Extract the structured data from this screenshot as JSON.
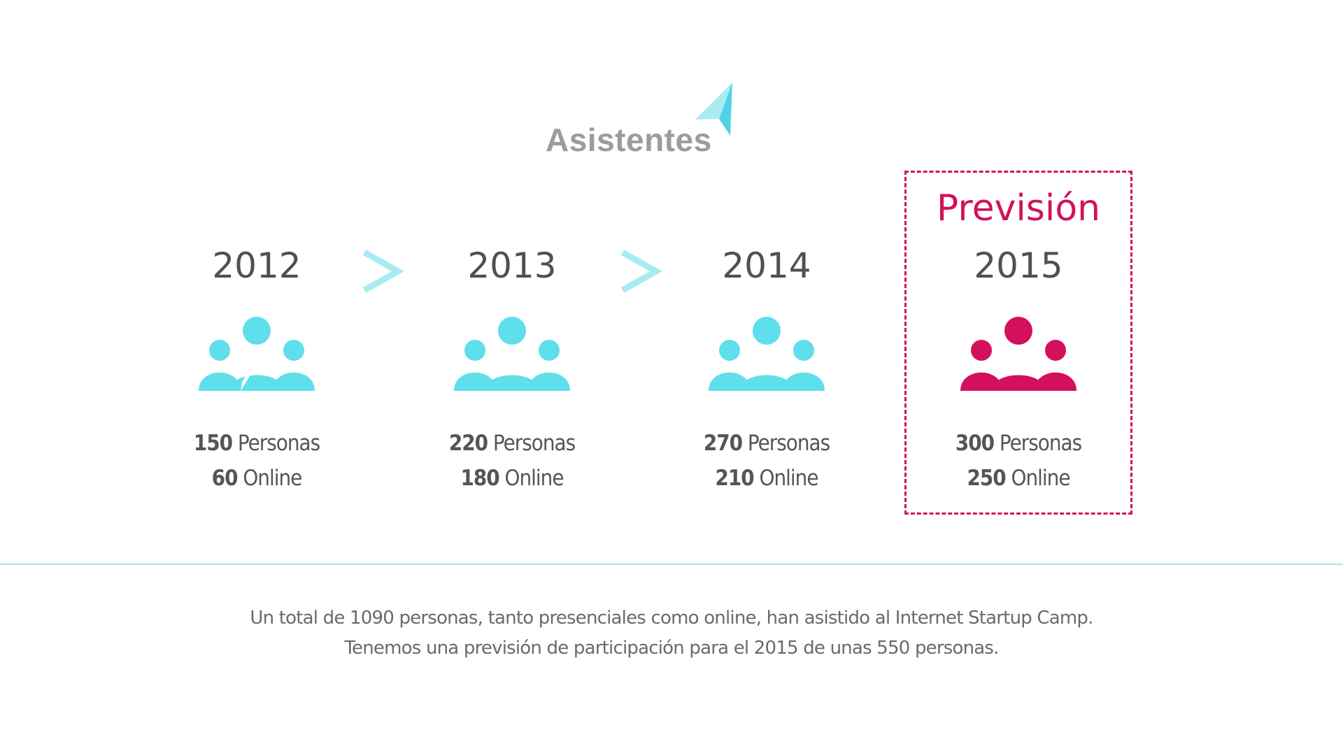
{
  "header": {
    "title": "Asistentes",
    "accent_color": "#5fd7e8"
  },
  "years": [
    {
      "year": "2012",
      "personas_num": "150",
      "personas_label": "Personas",
      "online_num": "60",
      "online_label": "Online",
      "icon": "people-group-icon"
    },
    {
      "year": "2013",
      "personas_num": "220",
      "personas_label": "Personas",
      "online_num": "180",
      "online_label": "Online",
      "icon": "people-group-icon"
    },
    {
      "year": "2014",
      "personas_num": "270",
      "personas_label": "Personas",
      "online_num": "210",
      "online_label": "Online",
      "icon": "people-group-icon"
    },
    {
      "year": "2015",
      "personas_num": "300",
      "personas_label": "Personas",
      "online_num": "250",
      "online_label": "Online",
      "icon": "people-group-icon"
    }
  ],
  "forecast": {
    "label": "Previsión",
    "color": "#d3105b"
  },
  "people_color": "#5fdeec",
  "footer": {
    "line1": "Un total de 1090 personas, tanto presenciales como online, han asistido al Internet Startup Camp.",
    "line2": "Tenemos una previsión de participación para el 2015 de unas 550 personas."
  }
}
